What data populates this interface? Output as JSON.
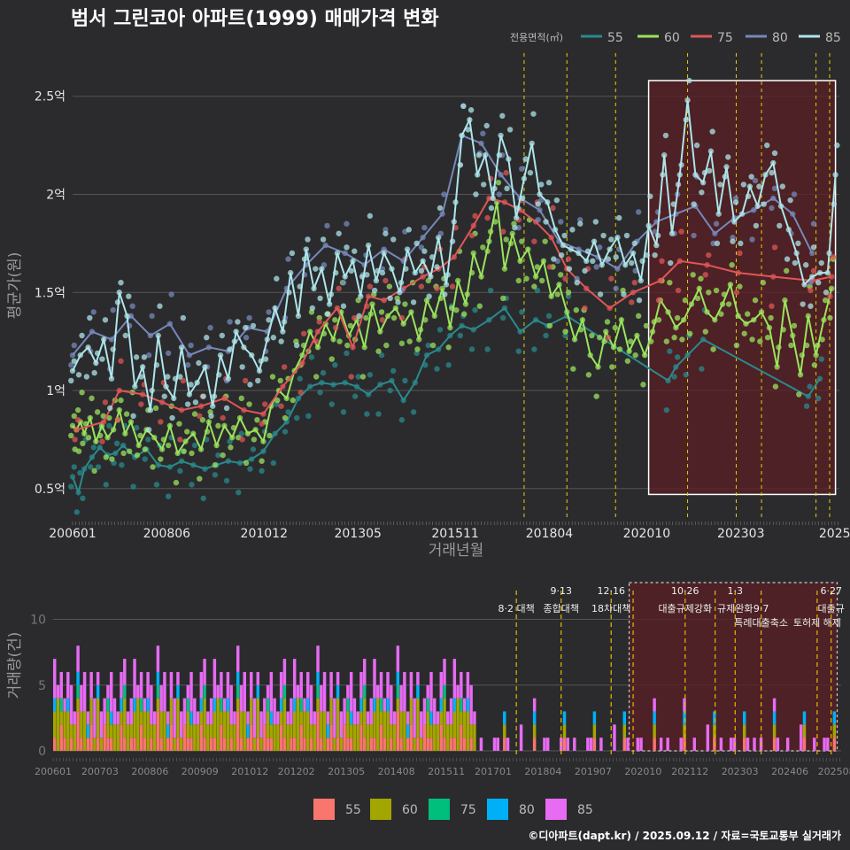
{
  "title": "범서 그린코아 아파트(1999) 매매가격 변화",
  "footer": "©디아파트(dapt.kr) / 2025.09.12 / 자료=국토교통부 실거래가",
  "colors": {
    "background": "#2b2b2d",
    "grid": "#555555",
    "highlight_fill": "#5a1f23",
    "event_line": "#e8d000"
  },
  "chart_data": [
    {
      "type": "line",
      "title": "범서 그린코아 아파트(1999) 매매가격 변화",
      "xlabel": "거래년월",
      "ylabel": "평균가(원)",
      "x_tick_labels": [
        "200601",
        "200806",
        "201012",
        "201305",
        "201511",
        "201804",
        "202010",
        "202303",
        "2025"
      ],
      "y_tick_labels": [
        "0.5억",
        "1억",
        "1.5억",
        "2억",
        "2.5억"
      ],
      "y_ticks": [
        0.5,
        1.0,
        1.5,
        2.0,
        2.5
      ],
      "xlim": [
        2006.0,
        2025.7
      ],
      "ylim": [
        0.35,
        2.72
      ],
      "y_unit": "억원",
      "legend": {
        "title": "전용면적(㎡)",
        "placement": "top-right"
      },
      "highlight_range": {
        "x": [
          2020.8,
          2025.6
        ],
        "y": [
          0.47,
          2.58
        ]
      },
      "event_lines": [
        2017.6,
        2018.7,
        2019.95,
        2021.8,
        2023.05,
        2023.7,
        2025.1,
        2025.45
      ],
      "series": [
        {
          "name": "55",
          "color": "#2a8a8c",
          "x": [
            2006.0,
            2006.15,
            2006.3,
            2006.5,
            2006.7,
            2006.9,
            2007.1,
            2007.3,
            2007.6,
            2007.9,
            2008.2,
            2008.5,
            2008.8,
            2009.1,
            2009.4,
            2009.7,
            2010.0,
            2010.3,
            2010.6,
            2010.9,
            2011.2,
            2011.5,
            2011.8,
            2012.1,
            2012.4,
            2012.7,
            2013.0,
            2013.3,
            2013.6,
            2013.9,
            2014.2,
            2014.5,
            2014.8,
            2015.1,
            2015.4,
            2015.7,
            2016.0,
            2016.3,
            2016.7,
            2017.1,
            2017.5,
            2017.9,
            2018.2,
            2018.7,
            2021.3,
            2021.5,
            2021.8,
            2022.2,
            2024.9,
            2025.2
          ],
          "y": [
            0.56,
            0.48,
            0.6,
            0.66,
            0.71,
            0.67,
            0.68,
            0.72,
            0.66,
            0.7,
            0.62,
            0.61,
            0.64,
            0.62,
            0.6,
            0.62,
            0.64,
            0.63,
            0.65,
            0.69,
            0.78,
            0.84,
            0.96,
            1.02,
            1.04,
            1.03,
            1.04,
            1.02,
            0.98,
            1.03,
            1.05,
            0.95,
            1.04,
            1.18,
            1.21,
            1.28,
            1.33,
            1.31,
            1.36,
            1.42,
            1.3,
            1.36,
            1.33,
            1.38,
            1.05,
            1.12,
            1.18,
            1.26,
            0.97,
            1.06
          ]
        },
        {
          "name": "60",
          "color": "#9be45e",
          "x": [
            2006.0,
            2006.1,
            2006.2,
            2006.3,
            2006.45,
            2006.6,
            2006.75,
            2006.9,
            2007.05,
            2007.2,
            2007.35,
            2007.5,
            2007.7,
            2007.9,
            2008.1,
            2008.3,
            2008.5,
            2008.7,
            2008.9,
            2009.1,
            2009.3,
            2009.5,
            2009.7,
            2009.9,
            2010.1,
            2010.3,
            2010.5,
            2010.7,
            2010.9,
            2011.1,
            2011.3,
            2011.5,
            2011.7,
            2011.9,
            2012.1,
            2012.3,
            2012.5,
            2012.7,
            2012.9,
            2013.1,
            2013.3,
            2013.5,
            2013.7,
            2013.9,
            2014.1,
            2014.3,
            2014.5,
            2014.7,
            2014.9,
            2015.1,
            2015.3,
            2015.5,
            2015.7,
            2015.9,
            2016.1,
            2016.3,
            2016.5,
            2016.7,
            2016.9,
            2017.1,
            2017.3,
            2017.5,
            2017.7,
            2017.9,
            2018.1,
            2018.3,
            2018.5,
            2018.7,
            2018.9,
            2019.1,
            2019.3,
            2019.5,
            2019.7,
            2019.9,
            2020.1,
            2020.3,
            2020.5,
            2020.7,
            2020.9,
            2021.1,
            2021.3,
            2021.5,
            2021.7,
            2021.9,
            2022.1,
            2022.3,
            2022.5,
            2022.7,
            2022.9,
            2023.1,
            2023.3,
            2023.5,
            2023.7,
            2023.9,
            2024.1,
            2024.3,
            2024.5,
            2024.7,
            2024.9,
            2025.1,
            2025.3,
            2025.5
          ],
          "y": [
            0.82,
            0.8,
            0.84,
            0.78,
            0.86,
            0.74,
            0.82,
            0.76,
            0.8,
            0.9,
            0.78,
            0.84,
            0.72,
            0.8,
            0.76,
            0.7,
            0.82,
            0.68,
            0.74,
            0.78,
            0.7,
            0.84,
            0.72,
            0.82,
            0.76,
            0.86,
            0.78,
            0.8,
            0.74,
            0.92,
            1.0,
            0.96,
            1.1,
            1.18,
            1.3,
            1.22,
            1.34,
            1.26,
            1.4,
            1.28,
            1.36,
            1.22,
            1.44,
            1.3,
            1.38,
            1.42,
            1.34,
            1.4,
            1.26,
            1.46,
            1.38,
            1.52,
            1.32,
            1.56,
            1.44,
            1.7,
            1.58,
            1.76,
            1.96,
            1.62,
            1.8,
            1.66,
            1.72,
            1.58,
            1.66,
            1.48,
            1.54,
            1.4,
            1.26,
            1.36,
            1.18,
            1.12,
            1.3,
            1.22,
            1.36,
            1.2,
            1.28,
            1.18,
            1.3,
            1.46,
            1.4,
            1.32,
            1.36,
            1.44,
            1.52,
            1.4,
            1.36,
            1.44,
            1.54,
            1.38,
            1.34,
            1.36,
            1.4,
            1.32,
            1.12,
            1.46,
            1.28,
            1.08,
            1.38,
            1.18,
            1.36,
            1.52
          ]
        },
        {
          "name": "75",
          "color": "#e05656",
          "x": [
            2006.1,
            2006.8,
            2007.2,
            2007.8,
            2008.3,
            2008.8,
            2009.3,
            2009.9,
            2010.4,
            2010.9,
            2011.4,
            2011.9,
            2012.3,
            2012.8,
            2013.2,
            2013.6,
            2014.0,
            2014.5,
            2015.0,
            2015.4,
            2015.8,
            2016.3,
            2016.7,
            2017.1,
            2017.5,
            2017.9,
            2018.3,
            2018.7,
            2019.2,
            2019.8,
            2020.4,
            2021.1,
            2021.6,
            2022.3,
            2023.1,
            2024.0,
            2025.0,
            2025.5
          ],
          "y": [
            0.8,
            0.84,
            1.0,
            0.98,
            0.94,
            0.9,
            0.92,
            0.96,
            0.9,
            0.88,
            1.02,
            1.14,
            1.3,
            1.42,
            1.22,
            1.48,
            1.46,
            1.52,
            1.58,
            1.62,
            1.68,
            1.84,
            1.98,
            1.96,
            1.92,
            1.86,
            1.78,
            1.62,
            1.52,
            1.42,
            1.5,
            1.56,
            1.66,
            1.64,
            1.6,
            1.58,
            1.56,
            1.58
          ]
        },
        {
          "name": "80",
          "color": "#7788bb",
          "x": [
            2006.0,
            2006.5,
            2007.0,
            2007.5,
            2008.0,
            2008.5,
            2009.0,
            2009.5,
            2010.0,
            2010.5,
            2011.0,
            2011.5,
            2012.0,
            2012.5,
            2013.0,
            2013.5,
            2014.0,
            2014.5,
            2015.0,
            2015.5,
            2016.0,
            2016.5,
            2017.0,
            2017.5,
            2018.0,
            2018.5,
            2019.0,
            2019.5,
            2020.0,
            2020.5,
            2021.0,
            2021.5,
            2022.0,
            2022.5,
            2023.0,
            2023.5,
            2024.0,
            2024.5,
            2025.0
          ],
          "y": [
            1.18,
            1.3,
            1.26,
            1.38,
            1.28,
            1.34,
            1.18,
            1.22,
            1.2,
            1.32,
            1.3,
            1.52,
            1.64,
            1.74,
            1.7,
            1.64,
            1.72,
            1.66,
            1.78,
            1.9,
            2.3,
            2.26,
            2.1,
            1.98,
            1.92,
            1.76,
            1.72,
            1.68,
            1.62,
            1.76,
            1.86,
            1.9,
            1.94,
            1.8,
            1.88,
            1.92,
            1.98,
            1.9,
            1.7
          ]
        },
        {
          "name": "85",
          "color": "#aee6ea",
          "x": [
            2006.0,
            2006.2,
            2006.4,
            2006.6,
            2006.8,
            2007.0,
            2007.2,
            2007.4,
            2007.6,
            2007.8,
            2008.0,
            2008.2,
            2008.4,
            2008.6,
            2008.8,
            2009.0,
            2009.2,
            2009.4,
            2009.6,
            2009.8,
            2010.0,
            2010.2,
            2010.4,
            2010.6,
            2010.8,
            2011.0,
            2011.2,
            2011.4,
            2011.6,
            2011.8,
            2012.0,
            2012.2,
            2012.4,
            2012.6,
            2012.8,
            2013.0,
            2013.2,
            2013.4,
            2013.6,
            2013.8,
            2014.0,
            2014.2,
            2014.4,
            2014.6,
            2014.8,
            2015.0,
            2015.2,
            2015.4,
            2015.6,
            2015.8,
            2016.0,
            2016.2,
            2016.4,
            2016.6,
            2016.8,
            2017.0,
            2017.2,
            2017.4,
            2017.6,
            2017.8,
            2018.0,
            2018.2,
            2018.4,
            2018.6,
            2018.8,
            2019.0,
            2019.2,
            2019.4,
            2019.6,
            2019.8,
            2020.0,
            2020.2,
            2020.4,
            2020.6,
            2020.8,
            2021.0,
            2021.2,
            2021.4,
            2021.6,
            2021.8,
            2022.0,
            2022.2,
            2022.4,
            2022.6,
            2022.8,
            2023.0,
            2023.2,
            2023.4,
            2023.6,
            2023.8,
            2024.0,
            2024.2,
            2024.4,
            2024.6,
            2024.8,
            2025.0,
            2025.2,
            2025.4,
            2025.6
          ],
          "y": [
            1.1,
            1.18,
            1.22,
            1.14,
            1.26,
            1.06,
            1.5,
            1.38,
            1.02,
            1.12,
            0.9,
            1.28,
            1.02,
            0.96,
            1.22,
            0.98,
            1.04,
            1.12,
            0.92,
            1.18,
            1.06,
            1.3,
            1.22,
            1.18,
            1.1,
            1.26,
            1.42,
            1.3,
            1.6,
            1.38,
            1.72,
            1.52,
            1.62,
            1.44,
            1.7,
            1.58,
            1.66,
            1.48,
            1.74,
            1.56,
            1.7,
            1.62,
            1.5,
            1.72,
            1.6,
            1.66,
            1.58,
            1.78,
            1.54,
            1.86,
            2.3,
            2.38,
            2.1,
            2.2,
            1.98,
            2.3,
            2.18,
            1.88,
            2.08,
            2.26,
            2.0,
            1.96,
            1.82,
            1.74,
            1.72,
            1.7,
            1.66,
            1.76,
            1.64,
            1.72,
            1.78,
            1.64,
            1.7,
            1.56,
            1.84,
            1.74,
            2.2,
            1.8,
            2.1,
            2.48,
            2.1,
            2.06,
            2.22,
            1.9,
            2.14,
            1.86,
            1.9,
            2.04,
            1.94,
            2.1,
            2.16,
            1.94,
            1.82,
            1.7,
            1.54,
            1.58,
            1.6,
            1.6,
            2.1
          ]
        }
      ]
    },
    {
      "type": "bar",
      "stacked": true,
      "ylabel": "거래량(건)",
      "x_tick_labels": [
        "200601",
        "200703",
        "200806",
        "200909",
        "201012",
        "201202",
        "201305",
        "201408",
        "201511",
        "201701",
        "201804",
        "201907",
        "202010",
        "202112",
        "202303",
        "202406",
        "202508"
      ],
      "y_tick_labels": [
        "0",
        "5",
        "10"
      ],
      "y_ticks": [
        0,
        5,
        10
      ],
      "xlim": [
        2006.0,
        2025.7
      ],
      "ylim": [
        0,
        13
      ],
      "legend": {
        "placement": "bottom",
        "entries": [
          "55",
          "60",
          "75",
          "80",
          "85"
        ]
      },
      "highlight_range": [
        2020.4,
        2025.6
      ],
      "events": [
        {
          "x": 2017.58,
          "label_top": "",
          "label": "8·2 대책"
        },
        {
          "x": 2018.7,
          "label_top": "9·13",
          "label": "종합대책"
        },
        {
          "x": 2019.95,
          "label_top": "12·16",
          "label": "18차대책"
        },
        {
          "x": 2020.5,
          "label_top": "",
          "label": ""
        },
        {
          "x": 2021.8,
          "label_top": "10·26",
          "label": "대출규제강화"
        },
        {
          "x": 2022.55,
          "label_top": "",
          "label": ""
        },
        {
          "x": 2023.05,
          "label_top": "1·3",
          "label": "규제완화"
        },
        {
          "x": 2023.7,
          "label_top": "",
          "label": "특례대출축소"
        },
        {
          "x": 2025.1,
          "label_top": "",
          "label": "토허제 해제"
        },
        {
          "x": 2025.45,
          "label_top": "6·27",
          "label": "대출규"
        }
      ],
      "event_labels_extra": [
        {
          "x": 2023.7,
          "text": "9·7",
          "row": 1
        }
      ],
      "series_colors": {
        "55": "#f8766d",
        "60": "#a3a500",
        "75": "#00bf7d",
        "80": "#00b0f6",
        "85": "#e76bf3"
      },
      "monthly_counts_note": "stacked monthly transaction counts; estimated from chart",
      "monthly": {
        "start": 2006.0,
        "step": 0.0833,
        "pattern_55": [
          1,
          0,
          2,
          1,
          0,
          1,
          0,
          3,
          1,
          0,
          1,
          2,
          0,
          1,
          0,
          2,
          1,
          1,
          0,
          0,
          2,
          1,
          0,
          1
        ],
        "pattern_60": [
          2,
          1,
          3,
          2,
          1,
          2,
          4,
          1,
          2,
          3,
          1,
          2,
          1,
          2,
          3,
          0,
          2,
          1,
          3,
          1,
          0,
          2,
          1,
          2
        ],
        "pattern_75": [
          0,
          0,
          1,
          0,
          0,
          0,
          0,
          1,
          0,
          0,
          0,
          0,
          1,
          0,
          0,
          0,
          0,
          1,
          0,
          0,
          0,
          0,
          0,
          0
        ],
        "pattern_80": [
          0,
          1,
          0,
          0,
          1,
          0,
          0,
          0,
          1,
          0,
          0,
          1,
          0,
          0,
          0,
          1,
          0,
          0,
          0,
          1,
          0,
          0,
          1,
          0
        ],
        "pattern_85": [
          2,
          3,
          1,
          2,
          2,
          3,
          1,
          2,
          3,
          1,
          2,
          2,
          1,
          3,
          2,
          1,
          2,
          2,
          1,
          2,
          3,
          1,
          2,
          1
        ]
      }
    }
  ]
}
